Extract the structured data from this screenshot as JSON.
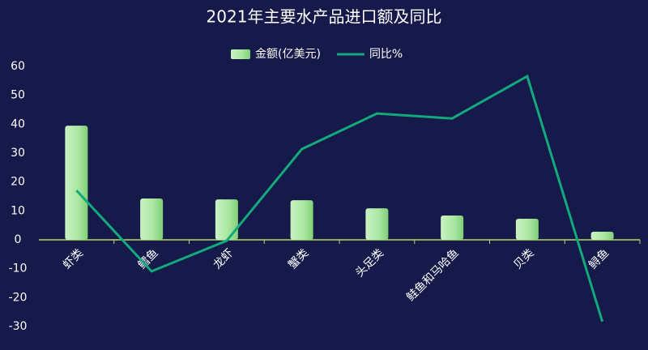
{
  "chart_data": {
    "type": "bar",
    "title": "2021年主要水产品进口额及同比",
    "categories": [
      "虾类",
      "鳕鱼",
      "龙虾",
      "蟹类",
      "头足类",
      "鲑鱼和马哈鱼",
      "贝类",
      "鲟鱼"
    ],
    "series": [
      {
        "name": "金额(亿美元)",
        "type": "bar",
        "color": "#a8e6a0",
        "values": [
          39.5,
          14.3,
          14,
          13.7,
          10.9,
          8.4,
          7.3,
          2.8
        ]
      },
      {
        "name": "同比%",
        "type": "line",
        "color": "#13a97c",
        "values": [
          17.1,
          -10.9,
          -0.3,
          31.4,
          43.7,
          42,
          56.6,
          -28.3
        ]
      }
    ],
    "ylim": [
      -30,
      60
    ],
    "yticks": [
      -30,
      -20,
      -10,
      0,
      10,
      20,
      30,
      40,
      50,
      60
    ],
    "grid": false
  }
}
